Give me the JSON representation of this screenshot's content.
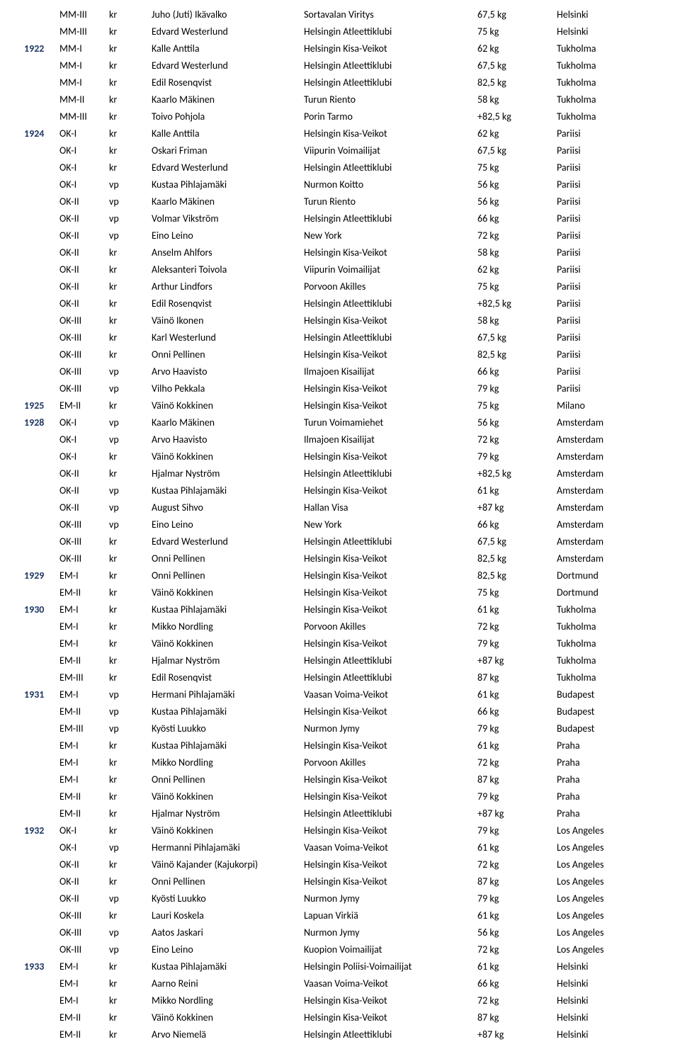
{
  "colors": {
    "text": "#000000",
    "year": "#1f3864",
    "background": "#ffffff"
  },
  "font": {
    "family": "Calibri, Arial, sans-serif",
    "size": 14
  },
  "columns": [
    "year",
    "comp",
    "style",
    "name",
    "club",
    "weight",
    "city"
  ],
  "rows": [
    {
      "year": "",
      "comp": "MM-III",
      "style": "kr",
      "name": "Juho (Juti) Ikävalko",
      "club": "Sortavalan Viritys",
      "weight": "67,5 kg",
      "city": "Helsinki"
    },
    {
      "year": "",
      "comp": "MM-III",
      "style": "kr",
      "name": "Edvard Westerlund",
      "club": "Helsingin Atleettiklubi",
      "weight": "75 kg",
      "city": "Helsinki"
    },
    {
      "year": "1922",
      "comp": "MM-I",
      "style": "kr",
      "name": "Kalle Anttila",
      "club": "Helsingin Kisa-Veikot",
      "weight": "62 kg",
      "city": "Tukholma"
    },
    {
      "year": "",
      "comp": "MM-I",
      "style": "kr",
      "name": "Edvard Westerlund",
      "club": "Helsingin Atleettiklubi",
      "weight": "67,5 kg",
      "city": "Tukholma"
    },
    {
      "year": "",
      "comp": "MM-I",
      "style": "kr",
      "name": "Edil Rosenqvist",
      "club": "Helsingin Atleettiklubi",
      "weight": "82,5 kg",
      "city": "Tukholma"
    },
    {
      "year": "",
      "comp": "MM-II",
      "style": "kr",
      "name": "Kaarlo Mäkinen",
      "club": "Turun Riento",
      "weight": "58 kg",
      "city": "Tukholma"
    },
    {
      "year": "",
      "comp": "MM-III",
      "style": "kr",
      "name": "Toivo Pohjola",
      "club": "Porin Tarmo",
      "weight": "+82,5 kg",
      "city": "Tukholma"
    },
    {
      "year": "1924",
      "comp": "OK-I",
      "style": "kr",
      "name": "Kalle Anttila",
      "club": "Helsingin Kisa-Veikot",
      "weight": "62 kg",
      "city": "Pariisi"
    },
    {
      "year": "",
      "comp": "OK-I",
      "style": "kr",
      "name": "Oskari Friman",
      "club": "Viipurin Voimailijat",
      "weight": "67,5 kg",
      "city": "Pariisi"
    },
    {
      "year": "",
      "comp": "OK-I",
      "style": "kr",
      "name": "Edvard Westerlund",
      "club": "Helsingin Atleettiklubi",
      "weight": "75 kg",
      "city": "Pariisi"
    },
    {
      "year": "",
      "comp": "OK-I",
      "style": "vp",
      "name": "Kustaa Pihlajamäki",
      "club": "Nurmon Koitto",
      "weight": "56 kg",
      "city": "Pariisi"
    },
    {
      "year": "",
      "comp": "OK-II",
      "style": "vp",
      "name": "Kaarlo Mäkinen",
      "club": "Turun Riento",
      "weight": "56 kg",
      "city": "Pariisi"
    },
    {
      "year": "",
      "comp": "OK-II",
      "style": "vp",
      "name": "Volmar Vikström",
      "club": "Helsingin Atleettiklubi",
      "weight": "66 kg",
      "city": "Pariisi"
    },
    {
      "year": "",
      "comp": "OK-II",
      "style": "vp",
      "name": "Eino Leino",
      "club": "New York",
      "weight": "72 kg",
      "city": "Pariisi"
    },
    {
      "year": "",
      "comp": "OK-II",
      "style": "kr",
      "name": "Anselm Ahlfors",
      "club": "Helsingin Kisa-Veikot",
      "weight": "58 kg",
      "city": "Pariisi"
    },
    {
      "year": "",
      "comp": "OK-II",
      "style": "kr",
      "name": "Aleksanteri Toivola",
      "club": "Viipurin Voimailijat",
      "weight": "62 kg",
      "city": "Pariisi"
    },
    {
      "year": "",
      "comp": "OK-II",
      "style": "kr",
      "name": "Arthur Lindfors",
      "club": "Porvoon Akilles",
      "weight": "75 kg",
      "city": "Pariisi"
    },
    {
      "year": "",
      "comp": "OK-II",
      "style": "kr",
      "name": "Edil Rosenqvist",
      "club": "Helsingin Atleettiklubi",
      "weight": "+82,5 kg",
      "city": "Pariisi"
    },
    {
      "year": "",
      "comp": "OK-III",
      "style": "kr",
      "name": "Väinö Ikonen",
      "club": "Helsingin Kisa-Veikot",
      "weight": "58 kg",
      "city": "Pariisi"
    },
    {
      "year": "",
      "comp": "OK-III",
      "style": "kr",
      "name": "Karl Westerlund",
      "club": "Helsingin Atleettiklubi",
      "weight": "67,5 kg",
      "city": "Pariisi"
    },
    {
      "year": "",
      "comp": "OK-III",
      "style": "kr",
      "name": "Onni Pellinen",
      "club": "Helsingin Kisa-Veikot",
      "weight": "82,5 kg",
      "city": "Pariisi"
    },
    {
      "year": "",
      "comp": "OK-III",
      "style": "vp",
      "name": "Arvo Haavisto",
      "club": "Ilmajoen Kisailijat",
      "weight": "66 kg",
      "city": "Pariisi"
    },
    {
      "year": "",
      "comp": "OK-III",
      "style": "vp",
      "name": "Vilho Pekkala",
      "club": "Helsingin Kisa-Veikot",
      "weight": "79 kg",
      "city": "Pariisi"
    },
    {
      "year": "1925",
      "comp": "EM-II",
      "style": "kr",
      "name": "Väinö Kokkinen",
      "club": "Helsingin Kisa-Veikot",
      "weight": "75 kg",
      "city": "Milano"
    },
    {
      "year": "1928",
      "comp": "OK-I",
      "style": "vp",
      "name": "Kaarlo Mäkinen",
      "club": "Turun Voimamiehet",
      "weight": "56 kg",
      "city": "Amsterdam"
    },
    {
      "year": "",
      "comp": "OK-I",
      "style": "vp",
      "name": "Arvo Haavisto",
      "club": "Ilmajoen Kisailijat",
      "weight": "72 kg",
      "city": "Amsterdam"
    },
    {
      "year": "",
      "comp": "OK-I",
      "style": "kr",
      "name": "Väinö Kokkinen",
      "club": "Helsingin Kisa-Veikot",
      "weight": "79 kg",
      "city": "Amsterdam"
    },
    {
      "year": "",
      "comp": "OK-II",
      "style": "kr",
      "name": "Hjalmar Nyström",
      "club": "Helsingin Atleettiklubi",
      "weight": "+82,5 kg",
      "city": "Amsterdam"
    },
    {
      "year": "",
      "comp": "OK-II",
      "style": "vp",
      "name": "Kustaa Pihlajamäki",
      "club": "Helsingin Kisa-Veikot",
      "weight": "61 kg",
      "city": "Amsterdam"
    },
    {
      "year": "",
      "comp": "OK-II",
      "style": "vp",
      "name": "August Sihvo",
      "club": "Hallan Visa",
      "weight": "+87 kg",
      "city": "Amsterdam"
    },
    {
      "year": "",
      "comp": "OK-III",
      "style": "vp",
      "name": "Eino Leino",
      "club": "New York",
      "weight": "66 kg",
      "city": "Amsterdam"
    },
    {
      "year": "",
      "comp": "OK-III",
      "style": "kr",
      "name": "Edvard Westerlund",
      "club": "Helsingin Atleettiklubi",
      "weight": "67,5 kg",
      "city": "Amsterdam"
    },
    {
      "year": "",
      "comp": "OK-III",
      "style": "kr",
      "name": "Onni Pellinen",
      "club": "Helsingin Kisa-Veikot",
      "weight": "82,5 kg",
      "city": "Amsterdam"
    },
    {
      "year": "1929",
      "comp": "EM-I",
      "style": "kr",
      "name": "Onni Pellinen",
      "club": "Helsingin Kisa-Veikot",
      "weight": "82,5 kg",
      "city": "Dortmund"
    },
    {
      "year": "",
      "comp": "EM-II",
      "style": "kr",
      "name": "Väinö Kokkinen",
      "club": "Helsingin Kisa-Veikot",
      "weight": "75 kg",
      "city": "Dortmund"
    },
    {
      "year": "1930",
      "comp": "EM-I",
      "style": "kr",
      "name": "Kustaa Pihlajamäki",
      "club": "Helsingin Kisa-Veikot",
      "weight": "61 kg",
      "city": "Tukholma"
    },
    {
      "year": "",
      "comp": "EM-I",
      "style": "kr",
      "name": "Mikko Nordling",
      "club": "Porvoon Akilles",
      "weight": "72 kg",
      "city": "Tukholma"
    },
    {
      "year": "",
      "comp": "EM-I",
      "style": "kr",
      "name": "Väinö Kokkinen",
      "club": "Helsingin Kisa-Veikot",
      "weight": "79 kg",
      "city": "Tukholma"
    },
    {
      "year": "",
      "comp": "EM-II",
      "style": "kr",
      "name": "Hjalmar Nyström",
      "club": "Helsingin Atleettiklubi",
      "weight": "+87 kg",
      "city": "Tukholma"
    },
    {
      "year": "",
      "comp": "EM-III",
      "style": "kr",
      "name": "Edil Rosenqvist",
      "club": "Helsingin Atleettiklubi",
      "weight": "87 kg",
      "city": "Tukholma"
    },
    {
      "year": "1931",
      "comp": "EM-I",
      "style": "vp",
      "name": "Hermani Pihlajamäki",
      "club": "Vaasan Voima-Veikot",
      "weight": "61 kg",
      "city": "Budapest"
    },
    {
      "year": "",
      "comp": "EM-II",
      "style": "vp",
      "name": "Kustaa Pihlajamäki",
      "club": "Helsingin Kisa-Veikot",
      "weight": "66 kg",
      "city": "Budapest"
    },
    {
      "year": "",
      "comp": "EM-III",
      "style": "vp",
      "name": "Kyösti Luukko",
      "club": "Nurmon Jymy",
      "weight": "79 kg",
      "city": "Budapest"
    },
    {
      "year": "",
      "comp": "EM-I",
      "style": "kr",
      "name": "Kustaa Pihlajamäki",
      "club": "Helsingin Kisa-Veikot",
      "weight": "61 kg",
      "city": "Praha"
    },
    {
      "year": "",
      "comp": "EM-I",
      "style": "kr",
      "name": "Mikko Nordling",
      "club": "Porvoon Akilles",
      "weight": "72 kg",
      "city": "Praha"
    },
    {
      "year": "",
      "comp": "EM-I",
      "style": "kr",
      "name": "Onni Pellinen",
      "club": "Helsingin Kisa-Veikot",
      "weight": "87 kg",
      "city": "Praha"
    },
    {
      "year": "",
      "comp": "EM-II",
      "style": "kr",
      "name": "Väinö Kokkinen",
      "club": "Helsingin Kisa-Veikot",
      "weight": "79 kg",
      "city": "Praha"
    },
    {
      "year": "",
      "comp": "EM-II",
      "style": "kr",
      "name": "Hjalmar Nyström",
      "club": "Helsingin Atleettiklubi",
      "weight": "+87 kg",
      "city": "Praha"
    },
    {
      "year": "1932",
      "comp": "OK-I",
      "style": "kr",
      "name": "Väinö Kokkinen",
      "club": "Helsingin Kisa-Veikot",
      "weight": "79 kg",
      "city": "Los Angeles"
    },
    {
      "year": "",
      "comp": "OK-I",
      "style": "vp",
      "name": "Hermanni Pihlajamäki",
      "club": "Vaasan Voima-Veikot",
      "weight": "61 kg",
      "city": "Los Angeles"
    },
    {
      "year": "",
      "comp": "OK-II",
      "style": "kr",
      "name": "Väinö Kajander (Kajukorpi)",
      "club": "Helsingin Kisa-Veikot",
      "weight": "72 kg",
      "city": "Los Angeles"
    },
    {
      "year": "",
      "comp": "OK-II",
      "style": "kr",
      "name": "Onni Pellinen",
      "club": "Helsingin Kisa-Veikot",
      "weight": "87 kg",
      "city": "Los Angeles"
    },
    {
      "year": "",
      "comp": "OK-II",
      "style": "vp",
      "name": "Kyösti Luukko",
      "club": "Nurmon Jymy",
      "weight": "79 kg",
      "city": "Los Angeles"
    },
    {
      "year": "",
      "comp": "OK-III",
      "style": "kr",
      "name": "Lauri Koskela",
      "club": "Lapuan Virkiä",
      "weight": "61 kg",
      "city": "Los Angeles"
    },
    {
      "year": "",
      "comp": "OK-III",
      "style": "vp",
      "name": "Aatos Jaskari",
      "club": "Nurmon Jymy",
      "weight": "56 kg",
      "city": "Los Angeles"
    },
    {
      "year": "",
      "comp": "OK-III",
      "style": "vp",
      "name": "Eino Leino",
      "club": "Kuopion Voimailijat",
      "weight": "72 kg",
      "city": "Los Angeles"
    },
    {
      "year": "1933",
      "comp": "EM-I",
      "style": "kr",
      "name": "Kustaa Pihlajamäki",
      "club": "Helsingin Poliisi-Voimailijat",
      "weight": "61 kg",
      "city": "Helsinki"
    },
    {
      "year": "",
      "comp": "EM-I",
      "style": "kr",
      "name": "Aarno Reini",
      "club": "Vaasan Voima-Veikot",
      "weight": "66 kg",
      "city": "Helsinki"
    },
    {
      "year": "",
      "comp": "EM-I",
      "style": "kr",
      "name": "Mikko Nordling",
      "club": "Helsingin Kisa-Veikot",
      "weight": "72 kg",
      "city": "Helsinki"
    },
    {
      "year": "",
      "comp": "EM-II",
      "style": "kr",
      "name": "Väinö Kokkinen",
      "club": "Helsingin Kisa-Veikot",
      "weight": "87 kg",
      "city": "Helsinki"
    },
    {
      "year": "",
      "comp": "EM-II",
      "style": "kr",
      "name": "Arvo Niemelä",
      "club": "Helsingin Atleettiklubi",
      "weight": "+87 kg",
      "city": "Helsinki"
    }
  ]
}
